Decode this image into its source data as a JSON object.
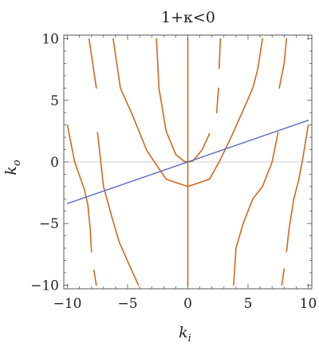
{
  "chart_data": {
    "type": "line",
    "title": "1+κ<0",
    "xlabel": "k",
    "xlabel_sub": "i",
    "ylabel": "k",
    "ylabel_sub": "o",
    "xlim": [
      -10.3,
      10.3
    ],
    "ylim": [
      -10.3,
      10.3
    ],
    "xticks": [
      -10,
      -5,
      0,
      5,
      10
    ],
    "yticks": [
      -10,
      -5,
      0,
      5,
      10
    ],
    "xtick_labels": [
      "−10",
      "−5",
      "0",
      "5",
      "10"
    ],
    "ytick_labels": [
      "−10",
      "−5",
      "0",
      "5",
      "10"
    ],
    "grid": false,
    "zero_line": true,
    "colors": {
      "contour": "#D2691E",
      "line": "#5B6BC0",
      "zero": "#cccccc",
      "frame": "#555555"
    },
    "series": [
      {
        "style": "contour",
        "points": [
          [
            -8.2,
            10
          ],
          [
            -7.9,
            8
          ],
          [
            -7.6,
            6
          ]
        ]
      },
      {
        "style": "contour",
        "points": [
          [
            -7.5,
            2.4
          ],
          [
            -7.0,
            -2.0
          ],
          [
            -6.3,
            -4.5
          ],
          [
            -5.7,
            -6.5
          ],
          [
            -4.8,
            -8.5
          ],
          [
            -4.1,
            -10
          ]
        ]
      },
      {
        "style": "contour",
        "points": [
          [
            -10,
            3.0
          ],
          [
            -9.4,
            0
          ],
          [
            -8.6,
            -2.2
          ],
          [
            -8.3,
            -3.5
          ],
          [
            -8.1,
            -5.5
          ],
          [
            -8.0,
            -7.3
          ]
        ]
      },
      {
        "style": "contour",
        "points": [
          [
            -7.8,
            -8.8
          ],
          [
            -7.6,
            -10
          ]
        ]
      },
      {
        "style": "contour",
        "points": [
          [
            -2.6,
            10
          ],
          [
            -2.4,
            6
          ],
          [
            -1.8,
            2.5
          ],
          [
            -1.0,
            0.6
          ],
          [
            -0.3,
            0.05
          ],
          [
            0,
            0
          ],
          [
            0.4,
            0.06
          ],
          [
            1.2,
            1.0
          ],
          [
            1.8,
            2.3
          ]
        ]
      },
      {
        "style": "contour",
        "points": [
          [
            2.4,
            4.0
          ],
          [
            2.55,
            6
          ]
        ]
      },
      {
        "style": "contour",
        "points": [
          [
            2.6,
            7.6
          ],
          [
            2.7,
            10
          ]
        ]
      },
      {
        "style": "contour",
        "points": [
          [
            -6.2,
            10
          ],
          [
            -5.6,
            6
          ],
          [
            -4.6,
            3.8
          ],
          [
            -3.4,
            0.9
          ],
          [
            -1.8,
            -1.4
          ],
          [
            0,
            -2.0
          ],
          [
            1.8,
            -1.4
          ],
          [
            2.6,
            0
          ],
          [
            3.5,
            1.8
          ],
          [
            4.6,
            4.2
          ],
          [
            5.4,
            6
          ],
          [
            5.8,
            7.5
          ],
          [
            6.2,
            10
          ]
        ]
      },
      {
        "style": "contour",
        "points": [
          [
            0,
            10
          ],
          [
            0,
            -10
          ]
        ]
      },
      {
        "style": "contour",
        "points": [
          [
            8.2,
            10
          ],
          [
            8.0,
            8
          ],
          [
            7.6,
            6
          ]
        ]
      },
      {
        "style": "contour",
        "points": [
          [
            7.5,
            2.4
          ],
          [
            7.0,
            0
          ],
          [
            6.2,
            -2.0
          ],
          [
            5.4,
            -3.0
          ],
          [
            4.6,
            -5.0
          ],
          [
            4.0,
            -7.0
          ],
          [
            3.8,
            -10
          ]
        ]
      },
      {
        "style": "contour",
        "points": [
          [
            10,
            3.0
          ],
          [
            9.5,
            0
          ],
          [
            9.2,
            -1.5
          ],
          [
            8.8,
            -3.0
          ],
          [
            8.4,
            -5.5
          ],
          [
            8.2,
            -7.3
          ]
        ]
      },
      {
        "style": "contour",
        "points": [
          [
            8.0,
            -8.7
          ],
          [
            7.8,
            -10
          ]
        ]
      },
      {
        "style": "line",
        "points": [
          [
            -10,
            -3.38
          ],
          [
            10,
            3.38
          ]
        ]
      }
    ]
  }
}
